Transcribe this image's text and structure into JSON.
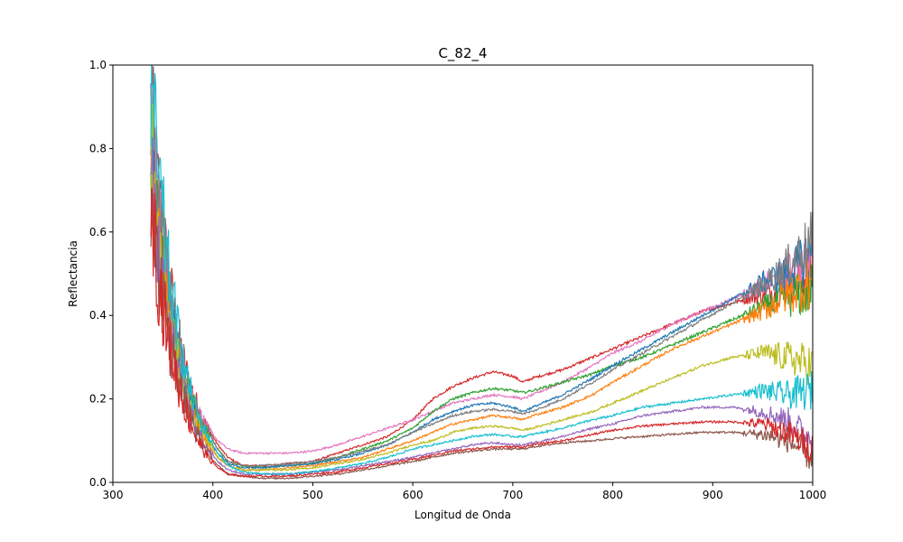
{
  "chart_data": {
    "type": "line",
    "title": "C_82_4",
    "xlabel": "Longitud de Onda",
    "ylabel": "Reflectancia",
    "xlim": [
      300,
      1000
    ],
    "ylim": [
      0,
      1.0
    ],
    "x_ticks": [
      300,
      400,
      500,
      600,
      700,
      800,
      900,
      1000
    ],
    "x_tick_labels": [
      "300",
      "400",
      "500",
      "600",
      "700",
      "800",
      "900",
      "1000"
    ],
    "y_ticks": [
      0,
      0.2,
      0.4,
      0.6,
      0.8,
      1.0
    ],
    "y_tick_labels": [
      "0.0",
      "0.2",
      "0.4",
      "0.6",
      "0.8",
      "1.0"
    ],
    "grid": false,
    "legend": "none",
    "x_start": 338,
    "x_end": 1000,
    "colors": [
      "#1f77b4",
      "#ff7f0e",
      "#2ca02c",
      "#d62728",
      "#9467bd",
      "#8c564b",
      "#e377c2",
      "#7f7f7f",
      "#bcbd22",
      "#17becf"
    ],
    "series_note": "Many spectral reflectance curves; values sampled at representative wavelengths (noise near 340-400 nm and 950-1000 nm)",
    "x": [
      338,
      345,
      355,
      365,
      375,
      385,
      395,
      405,
      415,
      430,
      450,
      475,
      500,
      525,
      550,
      575,
      600,
      620,
      640,
      660,
      680,
      700,
      710,
      720,
      750,
      780,
      800,
      830,
      860,
      890,
      920,
      950,
      975,
      1000
    ],
    "series": [
      {
        "color": "#d62728",
        "values": [
          0.9,
          0.7,
          0.5,
          0.35,
          0.25,
          0.18,
          0.13,
          0.09,
          0.06,
          0.04,
          0.04,
          0.045,
          0.05,
          0.07,
          0.09,
          0.11,
          0.15,
          0.2,
          0.23,
          0.25,
          0.265,
          0.255,
          0.24,
          0.25,
          0.27,
          0.3,
          0.32,
          0.35,
          0.38,
          0.41,
          0.43,
          0.45,
          0.47,
          0.5
        ]
      },
      {
        "color": "#e377c2",
        "values": [
          0.85,
          0.65,
          0.45,
          0.33,
          0.24,
          0.17,
          0.13,
          0.1,
          0.08,
          0.07,
          0.07,
          0.07,
          0.075,
          0.09,
          0.11,
          0.13,
          0.15,
          0.17,
          0.19,
          0.2,
          0.21,
          0.205,
          0.2,
          0.21,
          0.24,
          0.28,
          0.31,
          0.34,
          0.38,
          0.41,
          0.44,
          0.47,
          0.5,
          0.52
        ]
      },
      {
        "color": "#2ca02c",
        "values": [
          0.8,
          0.6,
          0.42,
          0.3,
          0.22,
          0.16,
          0.12,
          0.08,
          0.05,
          0.04,
          0.035,
          0.04,
          0.045,
          0.06,
          0.08,
          0.1,
          0.13,
          0.17,
          0.2,
          0.215,
          0.225,
          0.22,
          0.215,
          0.22,
          0.24,
          0.26,
          0.28,
          0.3,
          0.33,
          0.36,
          0.39,
          0.42,
          0.44,
          0.46
        ]
      },
      {
        "color": "#1f77b4",
        "values": [
          0.82,
          0.62,
          0.44,
          0.3,
          0.2,
          0.14,
          0.1,
          0.07,
          0.045,
          0.035,
          0.035,
          0.04,
          0.045,
          0.055,
          0.07,
          0.09,
          0.12,
          0.15,
          0.17,
          0.185,
          0.19,
          0.18,
          0.17,
          0.18,
          0.21,
          0.25,
          0.28,
          0.32,
          0.36,
          0.4,
          0.44,
          0.48,
          0.5,
          0.55
        ]
      },
      {
        "color": "#7f7f7f",
        "values": [
          0.88,
          0.68,
          0.48,
          0.34,
          0.23,
          0.16,
          0.12,
          0.08,
          0.05,
          0.04,
          0.04,
          0.045,
          0.05,
          0.06,
          0.075,
          0.09,
          0.12,
          0.14,
          0.16,
          0.17,
          0.175,
          0.17,
          0.165,
          0.17,
          0.2,
          0.24,
          0.27,
          0.31,
          0.35,
          0.39,
          0.43,
          0.47,
          0.52,
          0.58
        ]
      },
      {
        "color": "#ff7f0e",
        "values": [
          0.78,
          0.58,
          0.4,
          0.28,
          0.19,
          0.13,
          0.09,
          0.06,
          0.04,
          0.03,
          0.03,
          0.035,
          0.04,
          0.05,
          0.06,
          0.08,
          0.1,
          0.12,
          0.14,
          0.15,
          0.16,
          0.155,
          0.15,
          0.16,
          0.18,
          0.21,
          0.24,
          0.28,
          0.32,
          0.35,
          0.38,
          0.41,
          0.45,
          0.48
        ]
      },
      {
        "color": "#bcbd22",
        "values": [
          0.8,
          0.6,
          0.42,
          0.29,
          0.2,
          0.14,
          0.1,
          0.06,
          0.04,
          0.03,
          0.03,
          0.03,
          0.035,
          0.045,
          0.055,
          0.07,
          0.09,
          0.1,
          0.12,
          0.13,
          0.135,
          0.13,
          0.125,
          0.13,
          0.15,
          0.17,
          0.19,
          0.22,
          0.25,
          0.28,
          0.3,
          0.31,
          0.3,
          0.28
        ]
      },
      {
        "color": "#9467bd",
        "values": [
          0.75,
          0.55,
          0.38,
          0.27,
          0.18,
          0.12,
          0.08,
          0.05,
          0.03,
          0.02,
          0.02,
          0.02,
          0.025,
          0.03,
          0.04,
          0.05,
          0.06,
          0.07,
          0.08,
          0.09,
          0.095,
          0.09,
          0.09,
          0.095,
          0.11,
          0.13,
          0.14,
          0.16,
          0.17,
          0.18,
          0.18,
          0.17,
          0.15,
          0.1
        ]
      },
      {
        "color": "#8c564b",
        "values": [
          0.72,
          0.52,
          0.36,
          0.25,
          0.17,
          0.11,
          0.07,
          0.04,
          0.02,
          0.015,
          0.01,
          0.01,
          0.015,
          0.02,
          0.03,
          0.04,
          0.05,
          0.06,
          0.07,
          0.075,
          0.08,
          0.08,
          0.08,
          0.085,
          0.095,
          0.1,
          0.105,
          0.11,
          0.115,
          0.12,
          0.12,
          0.115,
          0.1,
          0.06
        ]
      },
      {
        "color": "#17becf",
        "values": [
          0.95,
          0.75,
          0.52,
          0.36,
          0.24,
          0.16,
          0.11,
          0.07,
          0.04,
          0.025,
          0.02,
          0.02,
          0.025,
          0.035,
          0.045,
          0.06,
          0.08,
          0.09,
          0.1,
          0.11,
          0.115,
          0.11,
          0.11,
          0.115,
          0.13,
          0.15,
          0.16,
          0.18,
          0.19,
          0.2,
          0.21,
          0.22,
          0.21,
          0.22
        ]
      },
      {
        "color": "#d62728",
        "values": [
          0.7,
          0.5,
          0.35,
          0.24,
          0.16,
          0.1,
          0.06,
          0.035,
          0.02,
          0.015,
          0.015,
          0.015,
          0.02,
          0.025,
          0.035,
          0.045,
          0.055,
          0.065,
          0.075,
          0.08,
          0.085,
          0.085,
          0.085,
          0.09,
          0.1,
          0.115,
          0.125,
          0.135,
          0.14,
          0.145,
          0.145,
          0.14,
          0.12,
          0.08
        ]
      }
    ]
  }
}
